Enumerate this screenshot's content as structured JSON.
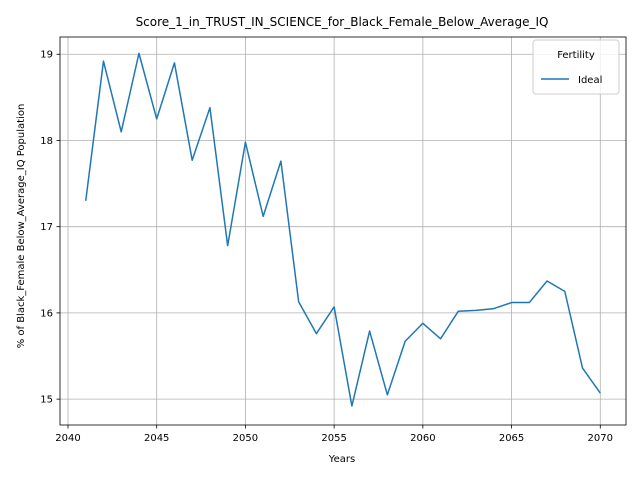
{
  "chart_data": {
    "type": "line",
    "title": "Score_1_in_TRUST_IN_SCIENCE_for_Black_Female_Below_Average_IQ",
    "xlabel": "Years",
    "ylabel": "% of Black_Female Below_Average_IQ Population",
    "xlim": [
      2039.55,
      2071.45
    ],
    "ylim": [
      14.7,
      19.2
    ],
    "xticks": [
      2040,
      2045,
      2050,
      2055,
      2060,
      2065,
      2070
    ],
    "yticks": [
      15,
      16,
      17,
      18,
      19
    ],
    "grid": true,
    "legend": {
      "title": "Fertility",
      "placement": "top-right"
    },
    "colors": {
      "series": "#1f77b4"
    },
    "series": [
      {
        "name": "Ideal",
        "x": [
          2041,
          2042,
          2043,
          2044,
          2045,
          2046,
          2047,
          2048,
          2049,
          2050,
          2051,
          2052,
          2053,
          2054,
          2055,
          2056,
          2057,
          2058,
          2059,
          2060,
          2061,
          2062,
          2063,
          2064,
          2065,
          2066,
          2067,
          2068,
          2069,
          2070
        ],
        "values": [
          17.3,
          18.92,
          18.1,
          19.01,
          18.25,
          18.9,
          17.77,
          18.38,
          16.78,
          17.98,
          17.12,
          17.76,
          16.13,
          15.76,
          16.07,
          14.92,
          15.79,
          15.05,
          15.67,
          15.88,
          15.7,
          16.02,
          16.03,
          16.05,
          16.12,
          16.12,
          16.37,
          16.25,
          15.36,
          15.07
        ]
      }
    ]
  }
}
